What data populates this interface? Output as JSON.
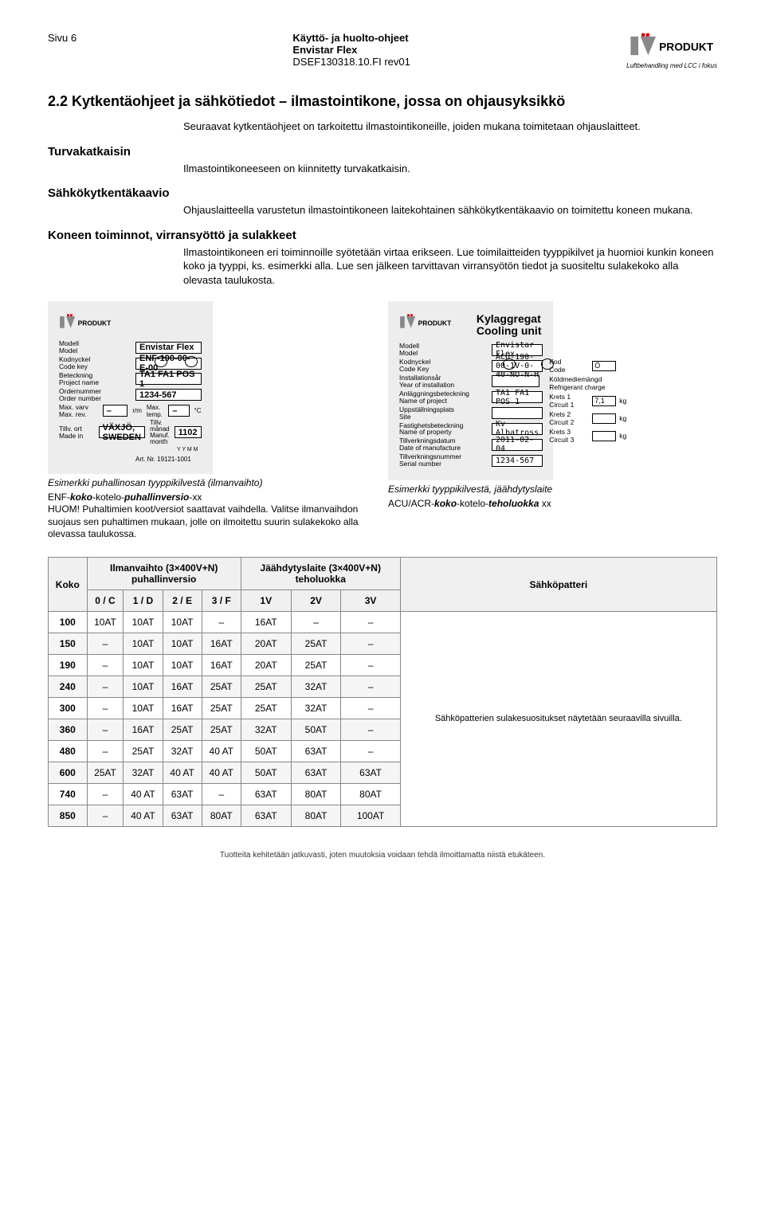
{
  "header": {
    "page": "Sivu 6",
    "doc_title": "Käyttö- ja huolto-ohjeet",
    "doc_product": "Envistar Flex",
    "doc_ref": "DSEF130318.10.FI rev01",
    "brand": "PRODUKT",
    "brand_sub": "Luftbehandling med LCC i fokus"
  },
  "section": {
    "title": "2.2 Kytkentäohjeet ja sähkötiedot – ilmastointikone, jossa on ohjausyksikkö",
    "intro": "Seuraavat kytkentäohjeet on tarkoitettu ilmastointikoneille, joiden mukana toimitetaan ohjauslaitteet.",
    "sub1": "Turvakatkaisin",
    "sub1_txt": "Ilmastointikoneeseen on kiinnitetty turvakatkaisin.",
    "sub2": "Sähkökytkentäkaavio",
    "sub2_txt": "Ohjauslaitteella varustetun ilmastointikoneen laitekohtainen sähkökytkentäkaavio on toimitettu koneen mukana.",
    "sub3": "Koneen toiminnot, virransyöttö ja sulakkeet",
    "sub3_txt": "Ilmastointikoneen eri toiminnoille syötetään virtaa erikseen. Lue toimilaitteiden tyyppikilvet ja huomioi kunkin koneen koko ja tyyppi, ks. esimerkki alla. Lue sen jälkeen tarvittavan virransyötön tiedot ja suositeltu sulakekoko alla olevasta taulukosta."
  },
  "plateA": {
    "labels": {
      "model": "Modell\nModel",
      "code": "Kodnyckel\nCode key",
      "proj": "Beteckning\nProject name",
      "ord": "Ordernummer\nOrder number",
      "rev": "Max. varv\nMax. rev.",
      "made": "Tillv. ort\nMade in",
      "temp": "Max. temp.",
      "month": "Tillv. månad\nManuf. month",
      "rm": "r/m",
      "c": "°C",
      "yymm": "Y Y M M"
    },
    "vals": {
      "model": "Envistar Flex",
      "code": "ENF-190-00-E-00",
      "proj": "TA1 FA1 POS 1",
      "ord": "1234-567",
      "rev": "–",
      "temp": "–",
      "made": "VÄXJÖ, SWEDEN",
      "month": "1102"
    },
    "art": "Art. Nr. 19121-1001",
    "caption": "Esimerkki puhallinosan tyyppikilvestä (ilmanvaihto)",
    "note_line1_a": "ENF-",
    "note_line1_b": "koko",
    "note_line1_c": "-kotelo-",
    "note_line1_d": "puhallinversio",
    "note_line1_e": "-xx",
    "note_rest": "HUOM! Puhaltimien koot/versiot saattavat vaihdella. Valitse ilmanvaihdon suojaus sen puhaltimen mukaan, jolle on ilmoitettu suurin sulakekoko alla olevassa taulukossa."
  },
  "plateB": {
    "title1": "Kylaggregat",
    "title2": "Cooling unit",
    "labels": {
      "model": "Modell\nModel",
      "code": "Kodnyckel\nCode Key",
      "year": "Installationsår\nYear of installation",
      "proj": "Anläggningsbeteckning\nName of project",
      "site": "Uppställningsplats\nSite",
      "prop": "Fastighetsbeteckning\nName of property",
      "date": "Tillverkningsdatum\nDate of manufacture",
      "serial": "Tillverkningsnummer\nSerial number",
      "kod": "Kod\nCode",
      "refr": "Köldmediemängd\nRefrigerant charge",
      "k1": "Krets 1\nCircuit 1",
      "k2": "Krets 2\nCircuit 2",
      "k3": "Krets 3\nCircuit 3",
      "kg": "kg"
    },
    "vals": {
      "model": "Envistar Flex",
      "code": "ACU-190-00-1V-0-40-NO-N-H",
      "proj": "TA1 FA1 POS 1",
      "prop": "Kv Albatross",
      "date": "2011-02-04",
      "serial": "1234-567",
      "kod": "Ö",
      "k1": "7,1"
    },
    "caption": "Esimerkki tyyppikilvestä, jäähdytyslaite",
    "note_a": "ACU/ACR-",
    "note_b": "koko",
    "note_c": "-kotelo-",
    "note_d": "teholuokka",
    "note_e": " xx"
  },
  "table": {
    "hdr_ilm": "Ilmanvaihto (3×400V+N)\npuhallinversio",
    "hdr_jaa": "Jäähdytyslaite (3×400V+N)\nteholuokka",
    "hdr_koko": "Koko",
    "hdr_sahk": "Sähköpatteri",
    "cols_ilm": [
      "0 / C",
      "1 / D",
      "2 / E",
      "3 / F"
    ],
    "cols_jaa": [
      "1V",
      "2V",
      "3V"
    ],
    "rows": [
      {
        "k": "100",
        "c": [
          "10AT",
          "10AT",
          "10AT",
          "–",
          "16AT",
          "–",
          "–"
        ]
      },
      {
        "k": "150",
        "c": [
          "–",
          "10AT",
          "10AT",
          "16AT",
          "20AT",
          "25AT",
          "–"
        ]
      },
      {
        "k": "190",
        "c": [
          "–",
          "10AT",
          "10AT",
          "16AT",
          "20AT",
          "25AT",
          "–"
        ]
      },
      {
        "k": "240",
        "c": [
          "–",
          "10AT",
          "16AT",
          "25AT",
          "25AT",
          "32AT",
          "–"
        ]
      },
      {
        "k": "300",
        "c": [
          "–",
          "10AT",
          "16AT",
          "25AT",
          "25AT",
          "32AT",
          "–"
        ]
      },
      {
        "k": "360",
        "c": [
          "–",
          "16AT",
          "25AT",
          "25AT",
          "32AT",
          "50AT",
          "–"
        ]
      },
      {
        "k": "480",
        "c": [
          "–",
          "25AT",
          "32AT",
          "40 AT",
          "50AT",
          "63AT",
          "–"
        ]
      },
      {
        "k": "600",
        "c": [
          "25AT",
          "32AT",
          "40 AT",
          "40 AT",
          "50AT",
          "63AT",
          "63AT"
        ]
      },
      {
        "k": "740",
        "c": [
          "–",
          "40 AT",
          "63AT",
          "–",
          "63AT",
          "80AT",
          "80AT"
        ]
      },
      {
        "k": "850",
        "c": [
          "–",
          "40 AT",
          "63AT",
          "80AT",
          "63AT",
          "80AT",
          "100AT"
        ]
      }
    ],
    "side_note": "Sähköpatterien sulakesuositukset näytetään seuraavilla sivuilla."
  },
  "footer": "Tuotteita kehitetään jatkuvasti, joten muutoksia voidaan tehdä ilmoittamatta niistä etukäteen."
}
